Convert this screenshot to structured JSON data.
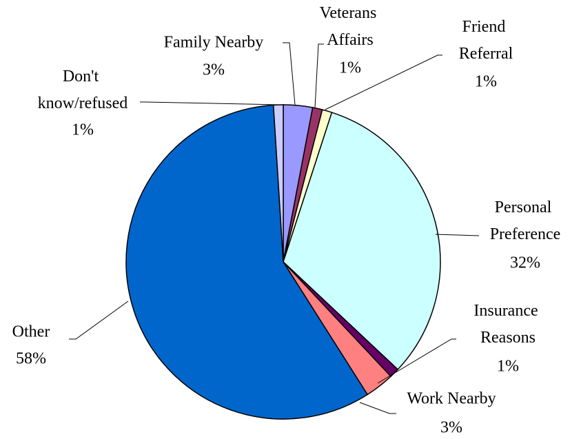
{
  "chart_data": {
    "type": "pie",
    "categories": [
      "Family Nearby",
      "Veterans Affairs",
      "Friend Referral",
      "Personal Preference",
      "Insurance Reasons",
      "Work Nearby",
      "Other",
      "Don't know/refused"
    ],
    "values": [
      3,
      1,
      1,
      32,
      1,
      3,
      58,
      1
    ],
    "value_labels": [
      "3%",
      "1%",
      "1%",
      "32%",
      "1%",
      "3%",
      "58%",
      "1%"
    ],
    "colors": [
      "#9999ff",
      "#993366",
      "#ffffcc",
      "#ccffff",
      "#660066",
      "#ff8080",
      "#0066cc",
      "#ccccff"
    ]
  }
}
